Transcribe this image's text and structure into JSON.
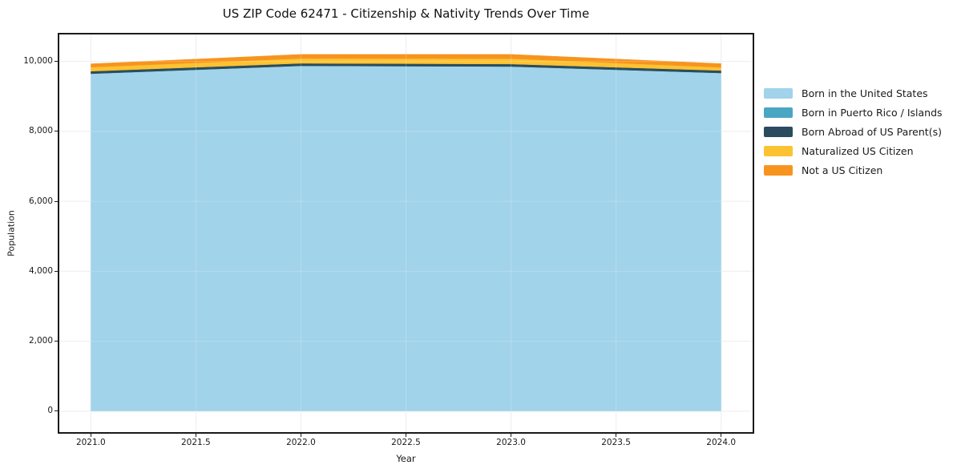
{
  "chart_data": {
    "type": "area",
    "stacked": true,
    "title": "US ZIP Code 62471 - Citizenship & Nativity Trends Over Time",
    "xlabel": "Year",
    "ylabel": "Population",
    "x": [
      2021,
      2022,
      2023,
      2024
    ],
    "series": [
      {
        "name": "Born in the United States",
        "color": "#A1D3EA",
        "values": [
          9650,
          9875,
          9855,
          9670
        ]
      },
      {
        "name": "Born in Puerto Rico / Islands",
        "color": "#4BA6C4",
        "values": [
          0,
          0,
          0,
          0
        ]
      },
      {
        "name": "Born Abroad of US Parent(s)",
        "color": "#2B4C5E",
        "values": [
          70,
          70,
          70,
          70
        ]
      },
      {
        "name": "Naturalized US Citizen",
        "color": "#FCC232",
        "values": [
          115,
          140,
          155,
          90
        ]
      },
      {
        "name": "Not a US Citizen",
        "color": "#F7941E",
        "values": [
          95,
          115,
          120,
          105
        ]
      }
    ],
    "totals": [
      9930,
      10200,
      10200,
      9935
    ],
    "xlim": [
      2020.85,
      2024.15
    ],
    "ylim": [
      -600,
      10770
    ],
    "xticks": {
      "values": [
        2021,
        2021.5,
        2022,
        2022.5,
        2023,
        2023.5,
        2024
      ],
      "labels": [
        "2021.0",
        "2021.5",
        "2022.0",
        "2022.5",
        "2023.0",
        "2023.5",
        "2024.0"
      ]
    },
    "yticks": {
      "values": [
        0,
        2000,
        4000,
        6000,
        8000,
        10000
      ],
      "labels": [
        "0",
        "2,000",
        "4,000",
        "6,000",
        "8,000",
        "10,000"
      ]
    },
    "grid": true,
    "legend_position": "right-outside"
  },
  "colors": {
    "background": "#ffffff",
    "gridline": "#eaeaea",
    "spine": "#1a1a1a",
    "text": "#1a1a1a"
  }
}
